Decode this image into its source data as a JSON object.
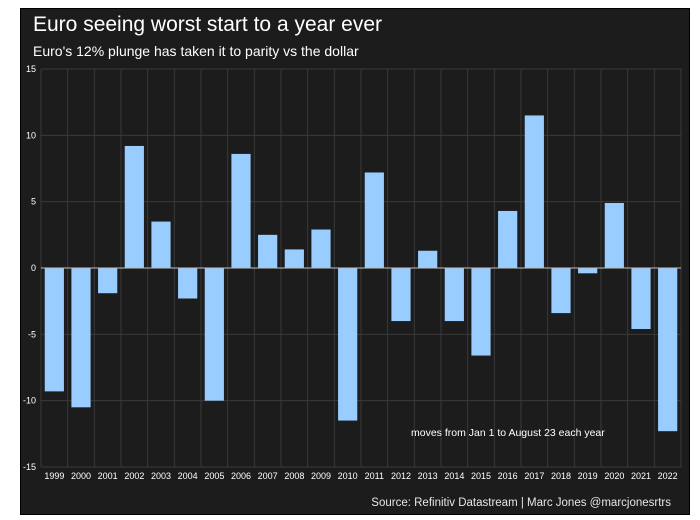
{
  "chart_data": {
    "type": "bar",
    "title": "Euro seeing worst start to a year ever",
    "subtitle": "Euro's 12% plunge has taken it to parity vs the dollar",
    "annotation": "moves from Jan 1 to August 23 each year",
    "source": "Source: Refinitiv Datastream | Marc Jones @marcjonesrtrs",
    "categories": [
      "1999",
      "2000",
      "2001",
      "2002",
      "2003",
      "2004",
      "2005",
      "2006",
      "2007",
      "2008",
      "2009",
      "2010",
      "2011",
      "2012",
      "2013",
      "2014",
      "2015",
      "2016",
      "2017",
      "2018",
      "2019",
      "2020",
      "2021",
      "2022"
    ],
    "values": [
      -9.3,
      -10.5,
      -1.9,
      9.2,
      3.5,
      -2.3,
      -10.0,
      8.6,
      2.5,
      1.4,
      2.9,
      -11.5,
      7.2,
      -4.0,
      1.3,
      -4.0,
      -6.6,
      4.3,
      11.5,
      -3.4,
      -0.4,
      4.9,
      -4.6,
      -12.3
    ],
    "yticks": [
      15,
      10,
      5,
      0,
      -5,
      -10,
      -15
    ],
    "ylim": [
      -15,
      15
    ],
    "grid": true,
    "colors": {
      "bar": "#99ccff",
      "background": "#1c1c1c",
      "grid": "#3a3a3a",
      "text": "#ffffff"
    }
  }
}
